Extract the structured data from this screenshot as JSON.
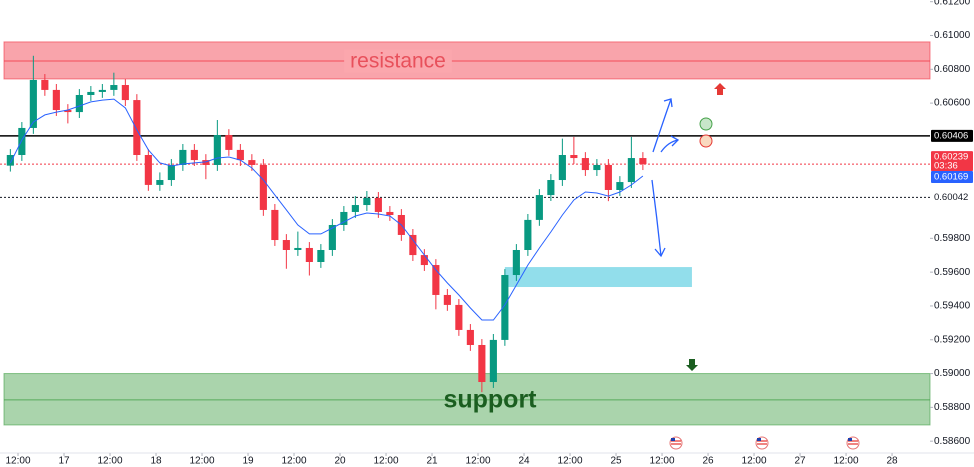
{
  "chart_data": {
    "type": "candlestick",
    "x": [
      -2,
      1,
      4,
      7,
      10,
      13,
      16,
      19,
      22,
      25,
      28,
      31,
      34,
      37,
      40,
      43,
      46,
      49,
      52,
      55,
      58,
      61,
      64,
      67,
      70,
      73,
      76,
      79,
      82,
      85,
      88,
      91,
      94,
      97,
      100,
      103,
      106,
      109,
      112,
      115,
      118,
      121,
      124,
      127,
      130,
      133,
      136,
      139,
      142,
      145,
      148,
      151,
      154,
      157,
      160,
      163
    ],
    "open": [
      0.6023,
      0.60293,
      0.60453,
      0.60737,
      0.60678,
      0.60559,
      0.60547,
      0.60648,
      0.60666,
      0.60678,
      0.60707,
      0.60618,
      0.60293,
      0.60116,
      0.60145,
      0.60234,
      0.60323,
      0.60263,
      0.60234,
      0.60411,
      0.60323,
      0.60263,
      0.60234,
      0.59968,
      0.5979,
      0.59731,
      0.59743,
      0.5966,
      0.59731,
      0.59879,
      0.59956,
      0.59997,
      0.60039,
      0.59956,
      0.59938,
      0.5982,
      0.59701,
      0.59642,
      0.59465,
      0.59406,
      0.59258,
      0.59169,
      0.5895,
      0.59199,
      0.59583,
      0.59731,
      0.59909,
      0.60056,
      0.60145,
      0.60293,
      0.60275,
      0.60204,
      0.60234,
      0.60086,
      0.60133,
      0.60275
    ],
    "high": [
      0.60328,
      0.60488,
      0.6088,
      0.60772,
      0.60713,
      0.60594,
      0.60683,
      0.60701,
      0.60713,
      0.6078,
      0.60742,
      0.60653,
      0.60328,
      0.6019,
      0.60269,
      0.60358,
      0.60358,
      0.60298,
      0.605,
      0.60446,
      0.60358,
      0.60298,
      0.60269,
      0.60003,
      0.59825,
      0.5984,
      0.59778,
      0.59766,
      0.59914,
      0.59991,
      0.6005,
      0.6008,
      0.60074,
      0.59991,
      0.59973,
      0.59855,
      0.59736,
      0.59677,
      0.595,
      0.59441,
      0.59293,
      0.59204,
      0.59234,
      0.59618,
      0.59766,
      0.59944,
      0.60091,
      0.6018,
      0.6039,
      0.604,
      0.6031,
      0.60269,
      0.60269,
      0.60168,
      0.604,
      0.6031
    ],
    "low": [
      0.60195,
      0.60258,
      0.60418,
      0.60643,
      0.60524,
      0.6048,
      0.60512,
      0.60613,
      0.60631,
      0.60643,
      0.60583,
      0.60258,
      0.60081,
      0.60081,
      0.6011,
      0.60199,
      0.60228,
      0.6015,
      0.60199,
      0.60288,
      0.60228,
      0.60199,
      0.59933,
      0.59755,
      0.5962,
      0.59696,
      0.5958,
      0.59625,
      0.59696,
      0.59844,
      0.59921,
      0.59962,
      0.59921,
      0.59903,
      0.59785,
      0.59666,
      0.59607,
      0.5938,
      0.59371,
      0.59223,
      0.59134,
      0.5889,
      0.58915,
      0.59164,
      0.59548,
      0.59696,
      0.59874,
      0.60021,
      0.6011,
      0.6024,
      0.60169,
      0.60169,
      0.6002,
      0.60051,
      0.60098,
      0.60204
    ],
    "close": [
      0.60293,
      0.60453,
      0.60737,
      0.60678,
      0.60559,
      0.60547,
      0.60648,
      0.60666,
      0.60678,
      0.60707,
      0.60618,
      0.60293,
      0.60116,
      0.60145,
      0.60234,
      0.60323,
      0.60263,
      0.60234,
      0.60411,
      0.60323,
      0.60263,
      0.60234,
      0.59968,
      0.5979,
      0.59731,
      0.59743,
      0.5966,
      0.59731,
      0.59879,
      0.59956,
      0.59997,
      0.60039,
      0.59956,
      0.59938,
      0.5982,
      0.59701,
      0.59642,
      0.59465,
      0.59406,
      0.59258,
      0.59169,
      0.5895,
      0.59199,
      0.59583,
      0.59731,
      0.59909,
      0.60056,
      0.60145,
      0.60293,
      0.60275,
      0.60204,
      0.60234,
      0.60086,
      0.60133,
      0.60275,
      0.60239
    ],
    "up_color": "#089981",
    "down_color": "#f23645",
    "ma": {
      "color": "#2962ff",
      "values": [
        0.60246,
        0.60382,
        0.60488,
        0.6053,
        0.60547,
        0.60559,
        0.60583,
        0.60607,
        0.60618,
        0.60624,
        0.60571,
        0.60441,
        0.60323,
        0.60246,
        0.60228,
        0.6024,
        0.60246,
        0.60252,
        0.60275,
        0.60281,
        0.60263,
        0.60216,
        0.60145,
        0.60056,
        0.59968,
        0.59879,
        0.59826,
        0.59826,
        0.59861,
        0.59897,
        0.59932,
        0.5995,
        0.59944,
        0.59932,
        0.59879,
        0.5979,
        0.59701,
        0.59613,
        0.59536,
        0.59465,
        0.59388,
        0.59317,
        0.59317,
        0.59406,
        0.59524,
        0.59642,
        0.59743,
        0.59838,
        0.59938,
        0.60027,
        0.60074,
        0.60068,
        0.6005,
        0.60074,
        0.60116,
        0.60169
      ]
    },
    "xlim": [
      -4.7,
      237.9
    ],
    "ylim": [
      0.5853,
      0.6121
    ],
    "xticks": [
      {
        "value": 0,
        "label": "12:00"
      },
      {
        "value": 12,
        "label": "17"
      },
      {
        "value": 24,
        "label": "12:00"
      },
      {
        "value": 36,
        "label": "18"
      },
      {
        "value": 48,
        "label": "12:00"
      },
      {
        "value": 60,
        "label": "19"
      },
      {
        "value": 72,
        "label": "12:00"
      },
      {
        "value": 84,
        "label": "20"
      },
      {
        "value": 96,
        "label": "12:00"
      },
      {
        "value": 108,
        "label": "21"
      },
      {
        "value": 120,
        "label": "12:00"
      },
      {
        "value": 132,
        "label": "24"
      },
      {
        "value": 144,
        "label": "12:00"
      },
      {
        "value": 156,
        "label": "25"
      },
      {
        "value": 168,
        "label": "12:00"
      },
      {
        "value": 180,
        "label": "26"
      },
      {
        "value": 192,
        "label": "12:00"
      },
      {
        "value": 204,
        "label": "27"
      },
      {
        "value": 216,
        "label": "12:00"
      },
      {
        "value": 228,
        "label": "28"
      }
    ],
    "yticks": [
      {
        "value": 0.612,
        "label": "0.61200"
      },
      {
        "value": 0.61,
        "label": "0.61000"
      },
      {
        "value": 0.608,
        "label": "0.60800"
      },
      {
        "value": 0.606,
        "label": "0.60600"
      },
      {
        "value": 0.598,
        "label": "0.59800"
      },
      {
        "value": 0.596,
        "label": "0.59600"
      },
      {
        "value": 0.594,
        "label": "0.59400"
      },
      {
        "value": 0.592,
        "label": "0.59200"
      },
      {
        "value": 0.59,
        "label": "0.59000"
      },
      {
        "value": 0.588,
        "label": "0.58800"
      },
      {
        "value": 0.586,
        "label": "0.58600"
      }
    ],
    "zones": [
      {
        "label": "resistance",
        "ylim": [
          0.60743,
          0.60962
        ],
        "mid": 0.60849,
        "color": "#f23645",
        "text_color": "#e8505b"
      },
      {
        "label": "support",
        "ylim": [
          0.58696,
          0.59
        ],
        "mid": 0.58844,
        "color": "#43a047",
        "text_color": "#1b5e20"
      }
    ],
    "box": {
      "xlim": [
        127,
        175.8
      ],
      "ylim": [
        0.59512,
        0.5963
      ],
      "color": "#7fd8e8"
    },
    "price_lines": [
      {
        "value": 0.60406,
        "label": "0.60406",
        "style": "solid",
        "color": "#000000"
      },
      {
        "value": 0.60239,
        "label": "0.60239",
        "style": "dotted",
        "color": "#f23645"
      },
      {
        "value": 0.60169,
        "label": "0.60169",
        "style": "none",
        "color": "#2962ff"
      },
      {
        "value": 0.60042,
        "label": "0.60042",
        "style": "dotted",
        "color": "#131722"
      }
    ],
    "countdown": "03:36"
  }
}
